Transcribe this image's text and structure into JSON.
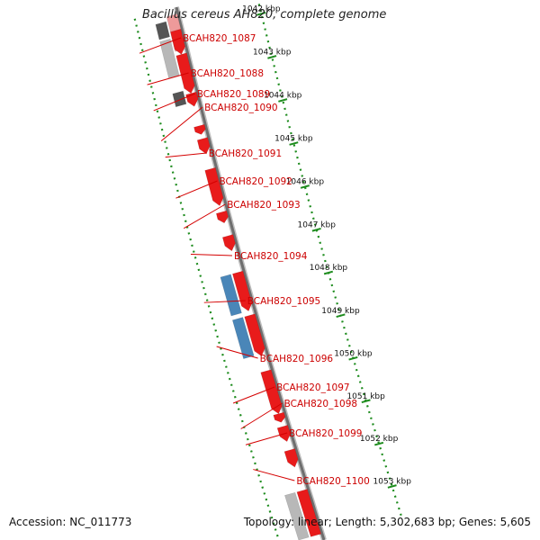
{
  "title": "Bacillus cereus AH820, complete genome",
  "accession": "Accession: NC_011773",
  "summary": "Topology: linear; Length: 5,302,683 bp; Genes: 5,605",
  "scale": {
    "ticks": [
      {
        "label": "1042 kbp"
      },
      {
        "label": "1043 kbp"
      },
      {
        "label": "1044 kbp"
      },
      {
        "label": "1045 kbp"
      },
      {
        "label": "1046 kbp"
      },
      {
        "label": "1047 kbp"
      },
      {
        "label": "1048 kbp"
      },
      {
        "label": "1049 kbp"
      },
      {
        "label": "1050 kbp"
      },
      {
        "label": "1051 kbp"
      },
      {
        "label": "1052 kbp"
      },
      {
        "label": "1053 kbp"
      }
    ]
  },
  "genes": [
    {
      "label": "BCAH820_1087",
      "start": 1041.85,
      "end": 1042.4,
      "strand": "+",
      "color": "#e81b1b"
    },
    {
      "label": "BCAH820_1088",
      "start": 1042.4,
      "end": 1043.3,
      "strand": "+",
      "color": "#e81b1b"
    },
    {
      "label": "BCAH820_1089",
      "start": 1043.3,
      "end": 1043.6,
      "strand": "+",
      "color": "#e81b1b"
    },
    {
      "label": "BCAH820_1090",
      "start": 1044.05,
      "end": 1044.25,
      "strand": "+",
      "color": "#e81b1b"
    },
    {
      "label": "BCAH820_1091",
      "start": 1044.35,
      "end": 1044.7,
      "strand": "+",
      "color": "#e81b1b"
    },
    {
      "label": "BCAH820_1092",
      "start": 1045.05,
      "end": 1045.9,
      "strand": "+",
      "color": "#e81b1b"
    },
    {
      "label": "BCAH820_1093",
      "start": 1046.05,
      "end": 1046.3,
      "strand": "+",
      "color": "#e81b1b"
    },
    {
      "label": "BCAH820_1094",
      "start": 1046.6,
      "end": 1046.95,
      "strand": "+",
      "color": "#e81b1b"
    },
    {
      "label": "BCAH820_1095",
      "start": 1047.45,
      "end": 1048.35,
      "strand": "+",
      "color": "#e81b1b"
    },
    {
      "label": "BCAH820_1096",
      "start": 1048.45,
      "end": 1049.4,
      "strand": "+",
      "color": "#e81b1b"
    },
    {
      "label": "BCAH820_1097",
      "start": 1049.75,
      "end": 1050.75,
      "strand": "+",
      "color": "#e81b1b"
    },
    {
      "label": "BCAH820_1098",
      "start": 1050.75,
      "end": 1050.95,
      "strand": "+",
      "color": "#e81b1b"
    },
    {
      "label": "BCAH820_1099",
      "start": 1051.05,
      "end": 1051.4,
      "strand": "+",
      "color": "#e81b1b"
    },
    {
      "label": "BCAH820_1100",
      "start": 1051.6,
      "end": 1052.0,
      "strand": "+",
      "color": "#e81b1b"
    }
  ],
  "extra_features": [
    {
      "track": "upper",
      "start": 1041.5,
      "end": 1042.3,
      "color": "#ee9a9a"
    },
    {
      "track": "lower",
      "start": 1041.6,
      "end": 1041.95,
      "color": "#555555"
    },
    {
      "track": "lower",
      "start": 1042.0,
      "end": 1042.85,
      "color": "#b8b8b8"
    },
    {
      "track": "lower",
      "start": 1043.2,
      "end": 1043.5,
      "color": "#555555"
    },
    {
      "track": "upper",
      "start": 1052.55,
      "end": 1053.6,
      "color": "#e81b1b"
    },
    {
      "track": "lower",
      "start": 1047.45,
      "end": 1048.35,
      "color": "#4a86b8"
    },
    {
      "track": "lower",
      "start": 1048.45,
      "end": 1049.35,
      "color": "#4a86b8"
    },
    {
      "track": "lower",
      "start": 1052.55,
      "end": 1053.6,
      "color": "#b8b8b8"
    }
  ]
}
